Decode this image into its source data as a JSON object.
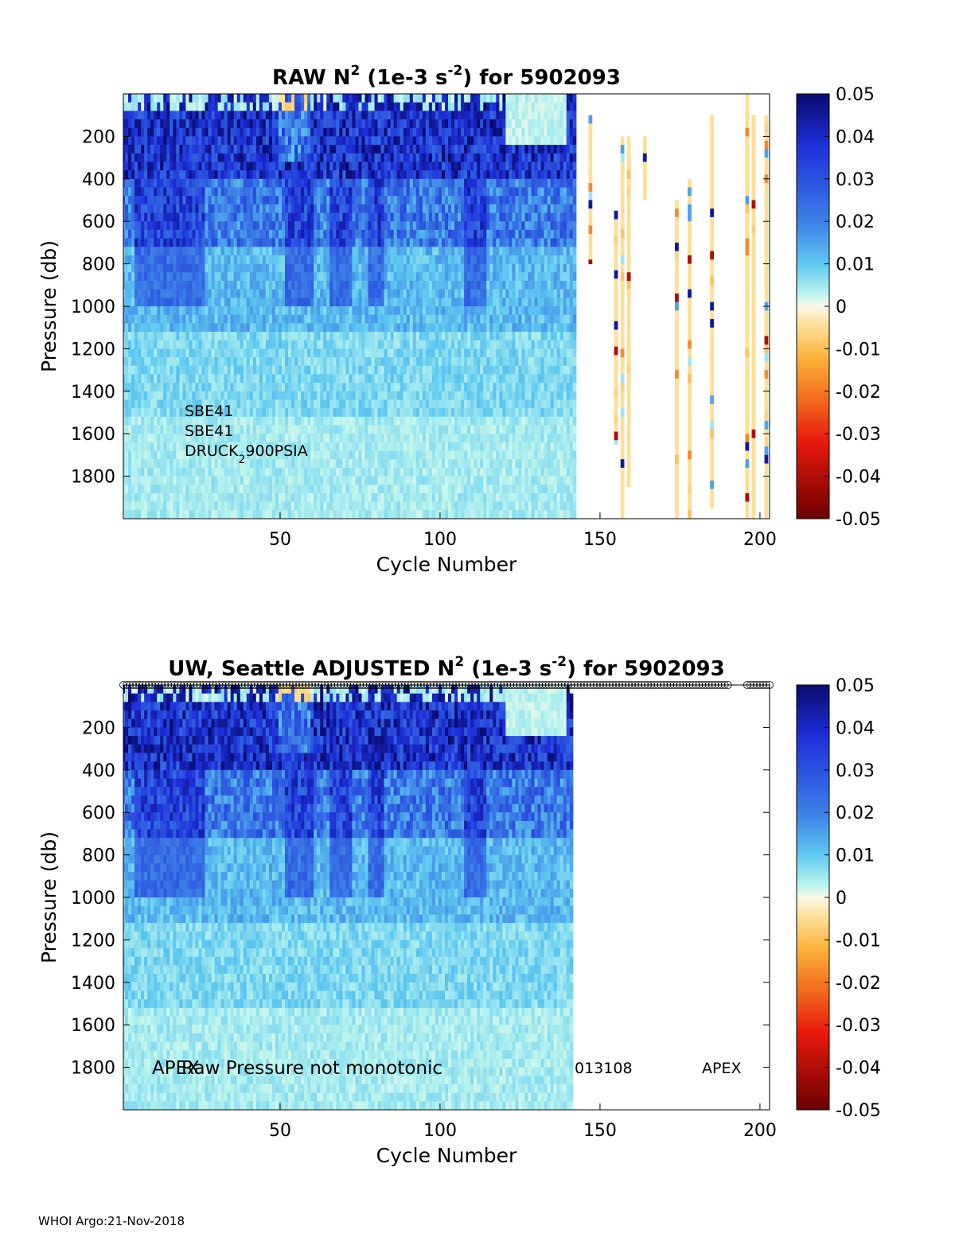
{
  "chart_data": [
    {
      "type": "heatmap",
      "title_parts": {
        "pre": "RAW N",
        "sup1": "2",
        "mid": " (1e-3 s",
        "sup2": "-2",
        "post": ") for 5902093"
      },
      "xlabel": "Cycle Number",
      "ylabel": "Pressure (db)",
      "xlim": [
        1,
        203
      ],
      "ylim": [
        0,
        2000
      ],
      "y_reversed": true,
      "x_ticks": [
        "50",
        "100",
        "150",
        "200"
      ],
      "y_ticks": [
        "200",
        "400",
        "600",
        "800",
        "1000",
        "1200",
        "1400",
        "1600",
        "1800"
      ],
      "dense_cycles": [
        1,
        142
      ],
      "sparse_profiles": [
        {
          "cycle": 147,
          "from": 100,
          "to": 800
        },
        {
          "cycle": 155,
          "from": 550,
          "to": 1650
        },
        {
          "cycle": 157,
          "from": 200,
          "to": 2000
        },
        {
          "cycle": 159,
          "from": 200,
          "to": 1850
        },
        {
          "cycle": 164,
          "from": 200,
          "to": 500
        },
        {
          "cycle": 174,
          "from": 500,
          "to": 2000
        },
        {
          "cycle": 178,
          "from": 400,
          "to": 2000
        },
        {
          "cycle": 185,
          "from": 100,
          "to": 1950
        },
        {
          "cycle": 196,
          "from": 0,
          "to": 2000
        },
        {
          "cycle": 198,
          "from": 100,
          "to": 2000
        },
        {
          "cycle": 202,
          "from": 100,
          "to": 2000
        }
      ],
      "annotations": {
        "sensor1": "SBE41",
        "sensor2": "SBE41",
        "sensor3_pre": "DRUCK",
        "sensor3_sub": "2",
        "sensor3_post": "900PSIA"
      },
      "colorbar": {
        "range": [
          -0.05,
          0.05
        ],
        "ticks": [
          "0.05",
          "0.04",
          "0.03",
          "0.02",
          "0.01",
          "0",
          "-0.01",
          "-0.02",
          "-0.03",
          "-0.04",
          "-0.05"
        ]
      }
    },
    {
      "type": "heatmap",
      "title_parts": {
        "pre": "UW, Seattle  ADJUSTED N",
        "sup1": "2",
        "mid": " (1e-3 s",
        "sup2": "-2",
        "post": ") for 5902093"
      },
      "xlabel": "Cycle Number",
      "ylabel": "Pressure (db)",
      "xlim": [
        1,
        203
      ],
      "ylim": [
        0,
        2000
      ],
      "y_reversed": true,
      "x_ticks": [
        "50",
        "100",
        "150",
        "200"
      ],
      "y_ticks": [
        "200",
        "400",
        "600",
        "800",
        "1000",
        "1200",
        "1400",
        "1600",
        "1800"
      ],
      "dense_cycles": [
        1,
        141
      ],
      "qc_marker_ranges": [
        [
          1,
          190
        ],
        [
          196,
          203
        ]
      ],
      "annotations": {
        "platform": "APEX",
        "warning": "Raw Pressure not monotonic",
        "serial": "013108",
        "platform2": "APEX"
      },
      "colorbar": {
        "range": [
          -0.05,
          0.05
        ],
        "ticks": [
          "0.05",
          "0.04",
          "0.03",
          "0.02",
          "0.01",
          "0",
          "-0.01",
          "-0.02",
          "-0.03",
          "-0.04",
          "-0.05"
        ]
      }
    }
  ],
  "footer": "WHOI Argo:21-Nov-2018"
}
